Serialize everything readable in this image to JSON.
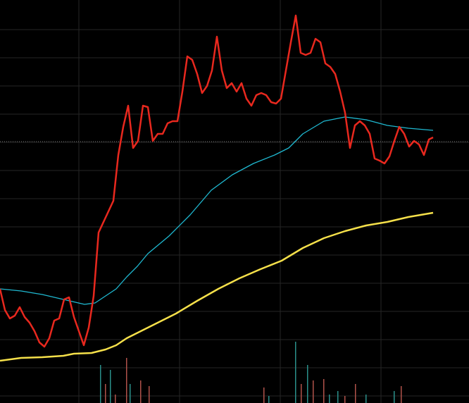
{
  "chart_data": {
    "type": "line",
    "xlim": [
      0,
      666
    ],
    "ylim": [
      0,
      572
    ],
    "xticks": [
      112,
      255,
      398,
      541
    ],
    "yticks": [
      10,
      50,
      90,
      130,
      170,
      210,
      250,
      290,
      330,
      370,
      410,
      450,
      490,
      530
    ],
    "grid": true,
    "reference_line": 371,
    "series": [
      {
        "color": "#e8281e",
        "x": [
          0,
          7,
          14,
          21,
          28,
          35,
          42,
          49,
          56,
          63,
          70,
          77,
          84,
          91,
          98,
          105,
          112,
          119,
          126,
          133,
          140,
          147,
          154,
          161,
          168,
          175,
          182,
          189,
          196,
          203,
          210,
          217,
          224,
          231,
          238,
          245,
          252,
          259,
          266,
          273,
          280,
          287,
          294,
          301,
          308,
          315,
          322,
          329,
          336,
          343,
          350,
          357,
          364,
          371,
          378,
          385,
          392,
          399,
          406,
          413,
          420,
          427,
          434,
          441,
          448,
          455,
          462,
          469,
          476,
          483,
          490,
          497,
          504,
          511,
          518,
          525,
          532,
          539,
          546,
          553,
          560,
          567,
          574,
          581,
          588,
          595,
          602,
          609,
          615
        ],
        "values": [
          162,
          132,
          120,
          124,
          136,
          122,
          114,
          102,
          86,
          80,
          92,
          117,
          120,
          147,
          150,
          122,
          102,
          82,
          107,
          152,
          242,
          257,
          272,
          287,
          352,
          392,
          422,
          362,
          372,
          422,
          420,
          372,
          382,
          382,
          397,
          400,
          400,
          442,
          492,
          487,
          467,
          440,
          450,
          472,
          520,
          472,
          447,
          454,
          442,
          454,
          432,
          422,
          437,
          440,
          437,
          427,
          425,
          432,
          472,
          512,
          550,
          497,
          494,
          497,
          517,
          512,
          482,
          477,
          467,
          442,
          412,
          362,
          394,
          400,
          394,
          382,
          347,
          344,
          340,
          350,
          372,
          392,
          382,
          364,
          372,
          367,
          352,
          374,
          377
        ]
      },
      {
        "color": "#1fb8d0",
        "x": [
          0,
          30,
          60,
          90,
          120,
          135,
          150,
          165,
          180,
          195,
          210,
          240,
          270,
          300,
          330,
          360,
          390,
          410,
          430,
          460,
          490,
          520,
          550,
          580,
          615
        ],
        "values": [
          162,
          159,
          154,
          147,
          140,
          142,
          152,
          162,
          179,
          194,
          212,
          237,
          267,
          302,
          324,
          340,
          352,
          362,
          382,
          400,
          406,
          402,
          394,
          390,
          387
        ]
      },
      {
        "color": "#f5e04a",
        "x": [
          0,
          30,
          60,
          90,
          105,
          130,
          150,
          165,
          180,
          200,
          220,
          250,
          280,
          310,
          340,
          370,
          400,
          430,
          460,
          490,
          520,
          550,
          580,
          615
        ],
        "values": [
          60,
          64,
          65,
          67,
          70,
          71,
          76,
          82,
          92,
          102,
          112,
          127,
          145,
          162,
          177,
          190,
          202,
          220,
          234,
          244,
          252,
          257,
          264,
          270
        ]
      }
    ],
    "volume": {
      "x": [
        143,
        150,
        157,
        164,
        180,
        185,
        200,
        212,
        375,
        382,
        420,
        428,
        437,
        445,
        460,
        468,
        480,
        490,
        505,
        520,
        560,
        570
      ],
      "values": [
        54,
        27,
        47,
        12,
        64,
        27,
        32,
        24,
        22,
        10,
        87,
        27,
        54,
        32,
        34,
        12,
        17,
        10,
        27,
        12,
        17,
        24
      ],
      "colors": [
        "#2a8f8a",
        "#b0524a",
        "#2a8f8a",
        "#b0524a",
        "#b0524a",
        "#2a8f8a",
        "#b0524a",
        "#b0524a",
        "#b0524a",
        "#2a8f8a",
        "#2a8f8a",
        "#b0524a",
        "#2a8f8a",
        "#b0524a",
        "#b0524a",
        "#2a8f8a",
        "#2a8f8a",
        "#b0524a",
        "#b0524a",
        "#2a8f8a",
        "#2a8f8a",
        "#b0524a"
      ]
    }
  }
}
